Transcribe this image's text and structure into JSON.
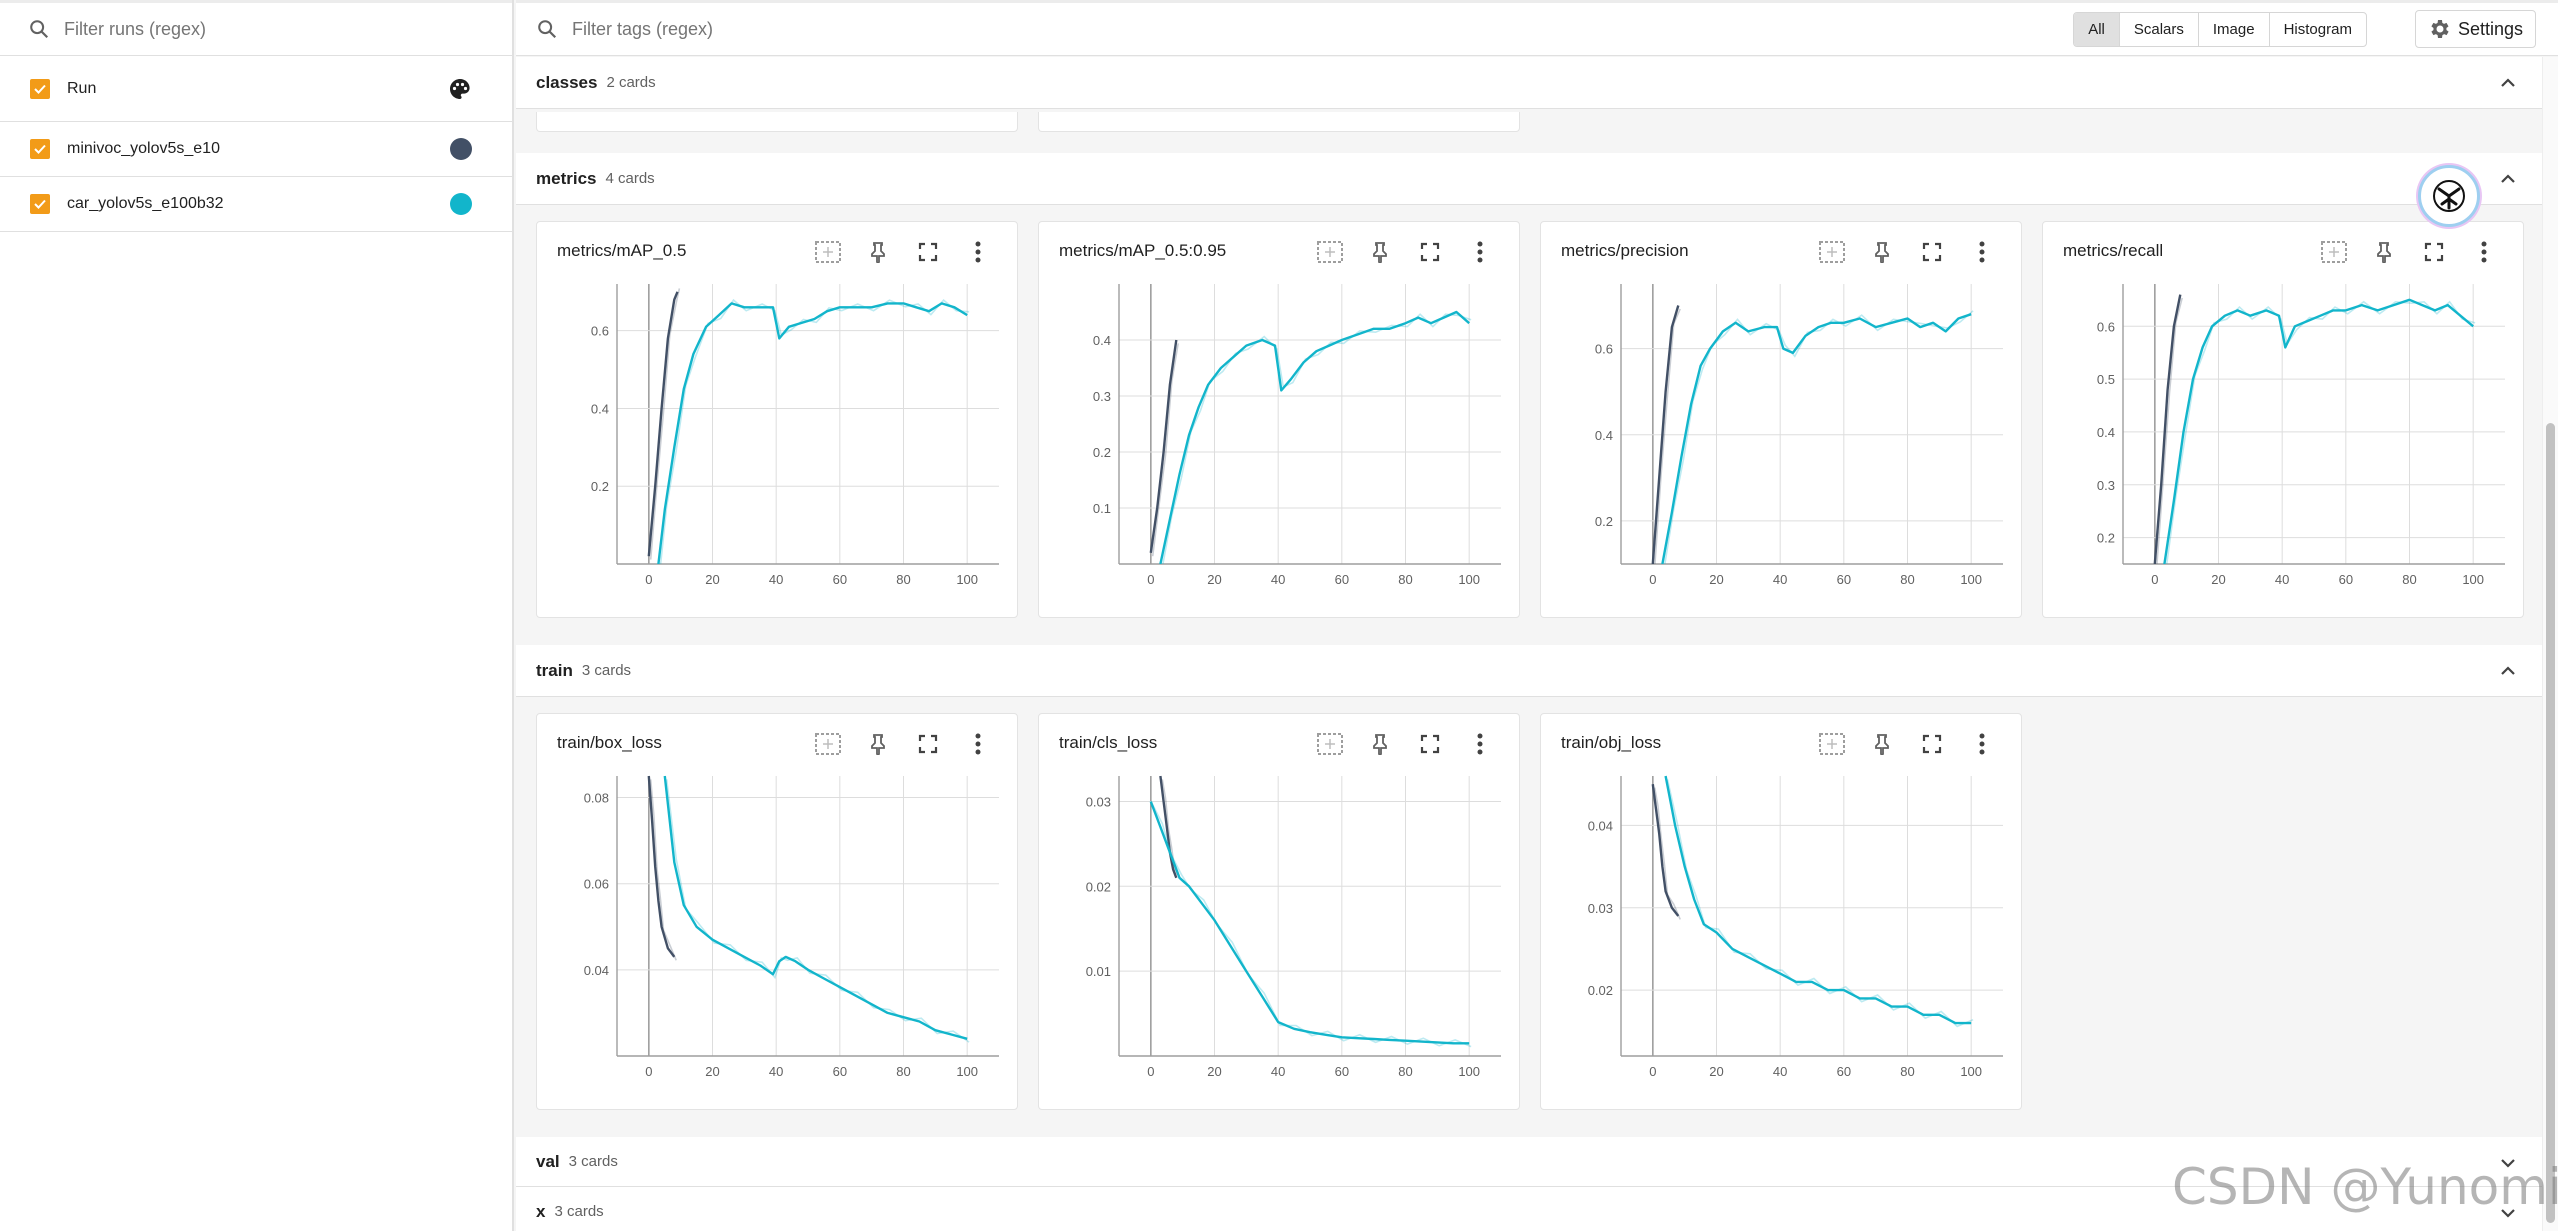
{
  "sidebar": {
    "filter_placeholder": "Filter runs (regex)",
    "header_label": "Run",
    "runs": [
      {
        "label": "minivoc_yolov5s_e10",
        "color": "#425066"
      },
      {
        "label": "car_yolov5s_e100b32",
        "color": "#12b5cb"
      }
    ]
  },
  "topbar": {
    "filter_placeholder": "Filter tags (regex)",
    "types": [
      "All",
      "Scalars",
      "Image",
      "Histogram"
    ],
    "selected_type": "All",
    "settings_label": "Settings"
  },
  "groups": [
    {
      "name": "classes",
      "count": "2 cards",
      "expanded": true
    },
    {
      "name": "metrics",
      "count": "4 cards",
      "expanded": true
    },
    {
      "name": "train",
      "count": "3 cards",
      "expanded": true
    },
    {
      "name": "val",
      "count": "3 cards",
      "expanded": false
    },
    {
      "name": "x",
      "count": "3 cards",
      "expanded": false
    }
  ],
  "watermark": "CSDN @Yunomi_",
  "chart_data": [
    {
      "type": "line",
      "title": "metrics/mAP_0.5",
      "xlim": [
        -10,
        110
      ],
      "ylim": [
        0,
        0.72
      ],
      "xticks": [
        0,
        20,
        40,
        60,
        80,
        100
      ],
      "yticks": [
        0.2,
        0.4,
        0.6
      ],
      "series": [
        {
          "color": "#425066",
          "x": [
            0,
            2,
            4,
            6,
            8,
            9
          ],
          "y": [
            0.02,
            0.2,
            0.4,
            0.58,
            0.68,
            0.7
          ]
        },
        {
          "color": "#12b5cb",
          "x": [
            3,
            5,
            8,
            11,
            14,
            18,
            22,
            26,
            30,
            35,
            39,
            41,
            44,
            48,
            52,
            56,
            60,
            65,
            70,
            75,
            80,
            84,
            88,
            92,
            96,
            100
          ],
          "y": [
            0.0,
            0.14,
            0.3,
            0.45,
            0.54,
            0.61,
            0.64,
            0.67,
            0.66,
            0.66,
            0.66,
            0.58,
            0.61,
            0.62,
            0.63,
            0.65,
            0.66,
            0.66,
            0.66,
            0.67,
            0.67,
            0.66,
            0.65,
            0.67,
            0.66,
            0.64
          ]
        }
      ]
    },
    {
      "type": "line",
      "title": "metrics/mAP_0.5:0.95",
      "xlim": [
        -10,
        110
      ],
      "ylim": [
        0,
        0.5
      ],
      "xticks": [
        0,
        20,
        40,
        60,
        80,
        100
      ],
      "yticks": [
        0.1,
        0.2,
        0.3,
        0.4
      ],
      "series": [
        {
          "color": "#425066",
          "x": [
            0,
            2,
            4,
            6,
            8
          ],
          "y": [
            0.02,
            0.1,
            0.2,
            0.32,
            0.4
          ]
        },
        {
          "color": "#12b5cb",
          "x": [
            3,
            6,
            9,
            12,
            15,
            18,
            22,
            26,
            30,
            35,
            39,
            41,
            44,
            48,
            52,
            56,
            60,
            65,
            70,
            75,
            80,
            84,
            88,
            92,
            96,
            100
          ],
          "y": [
            0.0,
            0.08,
            0.16,
            0.23,
            0.28,
            0.32,
            0.35,
            0.37,
            0.39,
            0.4,
            0.39,
            0.31,
            0.33,
            0.36,
            0.38,
            0.39,
            0.4,
            0.41,
            0.42,
            0.42,
            0.43,
            0.44,
            0.43,
            0.44,
            0.45,
            0.43
          ]
        }
      ]
    },
    {
      "type": "line",
      "title": "metrics/precision",
      "xlim": [
        -10,
        110
      ],
      "ylim": [
        0.1,
        0.75
      ],
      "xticks": [
        0,
        20,
        40,
        60,
        80,
        100
      ],
      "yticks": [
        0.2,
        0.4,
        0.6
      ],
      "series": [
        {
          "color": "#425066",
          "x": [
            0,
            2,
            4,
            6,
            8
          ],
          "y": [
            0.1,
            0.3,
            0.5,
            0.65,
            0.7
          ]
        },
        {
          "color": "#12b5cb",
          "x": [
            3,
            6,
            9,
            12,
            15,
            18,
            22,
            26,
            30,
            35,
            39,
            41,
            44,
            48,
            52,
            56,
            60,
            65,
            70,
            75,
            80,
            84,
            88,
            92,
            96,
            100
          ],
          "y": [
            0.1,
            0.22,
            0.35,
            0.47,
            0.56,
            0.6,
            0.64,
            0.66,
            0.64,
            0.65,
            0.65,
            0.6,
            0.59,
            0.63,
            0.65,
            0.66,
            0.66,
            0.67,
            0.65,
            0.66,
            0.67,
            0.65,
            0.66,
            0.64,
            0.67,
            0.68
          ]
        }
      ]
    },
    {
      "type": "line",
      "title": "metrics/recall",
      "xlim": [
        -10,
        110
      ],
      "ylim": [
        0.15,
        0.68
      ],
      "xticks": [
        0,
        20,
        40,
        60,
        80,
        100
      ],
      "yticks": [
        0.2,
        0.3,
        0.4,
        0.5,
        0.6
      ],
      "series": [
        {
          "color": "#425066",
          "x": [
            0,
            2,
            4,
            6,
            8
          ],
          "y": [
            0.15,
            0.3,
            0.48,
            0.6,
            0.66
          ]
        },
        {
          "color": "#12b5cb",
          "x": [
            3,
            6,
            9,
            12,
            15,
            18,
            22,
            26,
            30,
            35,
            39,
            41,
            44,
            48,
            52,
            56,
            60,
            65,
            70,
            75,
            80,
            84,
            88,
            92,
            96,
            100
          ],
          "y": [
            0.15,
            0.27,
            0.4,
            0.5,
            0.56,
            0.6,
            0.62,
            0.63,
            0.62,
            0.63,
            0.62,
            0.56,
            0.6,
            0.61,
            0.62,
            0.63,
            0.63,
            0.64,
            0.63,
            0.64,
            0.65,
            0.64,
            0.63,
            0.64,
            0.62,
            0.6
          ]
        }
      ]
    },
    {
      "type": "line",
      "title": "train/box_loss",
      "xlim": [
        -10,
        110
      ],
      "ylim": [
        0.02,
        0.085
      ],
      "xticks": [
        0,
        20,
        40,
        60,
        80,
        100
      ],
      "yticks": [
        0.04,
        0.06,
        0.08
      ],
      "series": [
        {
          "color": "#425066",
          "x": [
            0,
            1,
            2,
            3,
            4,
            6,
            8
          ],
          "y": [
            0.085,
            0.075,
            0.064,
            0.056,
            0.05,
            0.045,
            0.043
          ]
        },
        {
          "color": "#12b5cb",
          "x": [
            5,
            8,
            11,
            15,
            20,
            25,
            30,
            35,
            39,
            41,
            43,
            46,
            50,
            55,
            60,
            65,
            70,
            75,
            80,
            85,
            90,
            95,
            100
          ],
          "y": [
            0.085,
            0.065,
            0.055,
            0.05,
            0.047,
            0.045,
            0.043,
            0.041,
            0.039,
            0.042,
            0.043,
            0.042,
            0.04,
            0.038,
            0.036,
            0.034,
            0.032,
            0.03,
            0.029,
            0.028,
            0.026,
            0.025,
            0.024
          ]
        }
      ]
    },
    {
      "type": "line",
      "title": "train/cls_loss",
      "xlim": [
        -10,
        110
      ],
      "ylim": [
        0,
        0.033
      ],
      "xticks": [
        0,
        20,
        40,
        60,
        80,
        100
      ],
      "yticks": [
        0.01,
        0.02,
        0.03
      ],
      "series": [
        {
          "color": "#425066",
          "x": [
            3,
            4,
            5,
            6,
            7,
            8
          ],
          "y": [
            0.033,
            0.03,
            0.027,
            0.024,
            0.022,
            0.021
          ]
        },
        {
          "color": "#12b5cb",
          "x": [
            0,
            3,
            6,
            9,
            12,
            16,
            20,
            25,
            30,
            35,
            40,
            45,
            50,
            55,
            60,
            65,
            70,
            75,
            80,
            85,
            90,
            95,
            100
          ],
          "y": [
            0.03,
            0.027,
            0.024,
            0.021,
            0.02,
            0.018,
            0.016,
            0.013,
            0.01,
            0.007,
            0.004,
            0.0032,
            0.0028,
            0.0025,
            0.0022,
            0.0021,
            0.002,
            0.0019,
            0.0018,
            0.0017,
            0.0016,
            0.0015,
            0.0015
          ]
        }
      ]
    },
    {
      "type": "line",
      "title": "train/obj_loss",
      "xlim": [
        -10,
        110
      ],
      "ylim": [
        0.012,
        0.046
      ],
      "xticks": [
        0,
        20,
        40,
        60,
        80,
        100
      ],
      "yticks": [
        0.02,
        0.03,
        0.04
      ],
      "series": [
        {
          "color": "#425066",
          "x": [
            0,
            1,
            2,
            3,
            4,
            6,
            8
          ],
          "y": [
            0.045,
            0.042,
            0.039,
            0.035,
            0.032,
            0.03,
            0.029
          ]
        },
        {
          "color": "#12b5cb",
          "x": [
            4,
            7,
            10,
            13,
            16,
            20,
            25,
            30,
            35,
            40,
            45,
            50,
            55,
            60,
            65,
            70,
            75,
            80,
            85,
            90,
            95,
            100
          ],
          "y": [
            0.046,
            0.04,
            0.035,
            0.031,
            0.028,
            0.027,
            0.025,
            0.024,
            0.023,
            0.022,
            0.021,
            0.021,
            0.02,
            0.02,
            0.019,
            0.019,
            0.018,
            0.018,
            0.017,
            0.017,
            0.016,
            0.016
          ]
        }
      ]
    }
  ]
}
